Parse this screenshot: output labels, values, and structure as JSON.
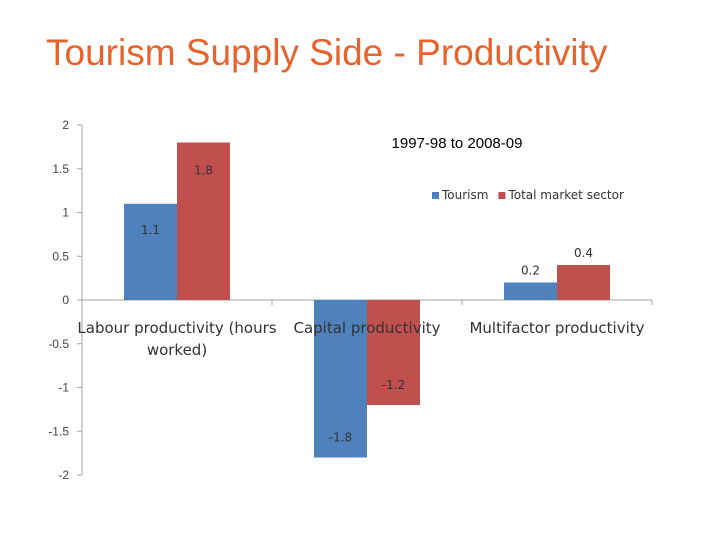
{
  "page": {
    "title": "Tourism Supply Side - Productivity"
  },
  "chart_data": {
    "type": "bar",
    "title": "1997-98 to 2008-09",
    "categories": [
      [
        "Labour productivity (hours",
        "worked)"
      ],
      [
        "Capital productivity"
      ],
      [
        "Multifactor productivity"
      ]
    ],
    "series": [
      {
        "name": "Tourism",
        "color": "#4f81bd",
        "values": [
          1.1,
          -1.8,
          0.2
        ],
        "labels": [
          "1.1",
          "-1.8",
          "0.2"
        ]
      },
      {
        "name": "Total market sector",
        "color": "#c0504d",
        "values": [
          1.8,
          -1.2,
          0.4
        ],
        "labels": [
          "1.8",
          "-1.2",
          "0.4"
        ]
      }
    ],
    "ylim": [
      -2,
      2
    ],
    "yticks": [
      "2",
      "1.5",
      "1",
      "0.5",
      "0",
      "-0.5",
      "-1",
      "-1.5",
      "-2"
    ],
    "xlabel": "",
    "ylabel": "",
    "legend_position": "top-right",
    "grid": false
  }
}
